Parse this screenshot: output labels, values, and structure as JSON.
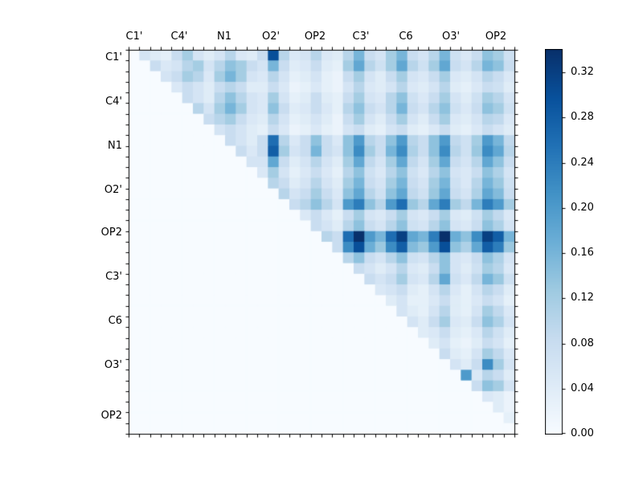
{
  "figure": {
    "background": "#ffffff",
    "axis_color": "#000000"
  },
  "chart_data": {
    "type": "heatmap",
    "title": "",
    "xlabel": "",
    "ylabel": "",
    "n": 36,
    "cells_per_group": 4,
    "col_groups": [
      "C1'",
      "C4'",
      "N1",
      "O2'",
      "OP2",
      "C3'",
      "C6",
      "O3'",
      "OP2"
    ],
    "row_groups": [
      "C1'",
      "C4'",
      "N1",
      "O2'",
      "OP2",
      "C3'",
      "C6",
      "O3'",
      "OP2"
    ],
    "layout_hints": {
      "matrix_form": "upper-triangular",
      "grid": false,
      "colorbar_position": "right"
    },
    "vmin": 0.0,
    "vmax": 0.34,
    "colormap": {
      "name": "Blues",
      "stops": [
        {
          "t": 0.0,
          "color": "#f7fbff"
        },
        {
          "t": 0.125,
          "color": "#deebf7"
        },
        {
          "t": 0.25,
          "color": "#c6dbef"
        },
        {
          "t": 0.375,
          "color": "#9ecae1"
        },
        {
          "t": 0.5,
          "color": "#6baed6"
        },
        {
          "t": 0.625,
          "color": "#4292c6"
        },
        {
          "t": 0.75,
          "color": "#2171b5"
        },
        {
          "t": 0.875,
          "color": "#08519c"
        },
        {
          "t": 1.0,
          "color": "#08306b"
        }
      ]
    },
    "colorbar": {
      "tick_values": [
        0.32,
        0.28,
        0.24,
        0.2,
        0.16,
        0.12,
        0.08,
        0.04,
        0.0
      ],
      "tick_labels": [
        "0.32",
        "0.28",
        "0.24",
        "0.20",
        "0.16",
        "0.12",
        "0.08",
        "0.04",
        "0.00"
      ]
    },
    "matrix": [
      [
        0,
        0.06,
        0.04,
        0.03,
        0.08,
        0.12,
        0.06,
        0.04,
        0.06,
        0.1,
        0.05,
        0.04,
        0.08,
        0.3,
        0.1,
        0.05,
        0.06,
        0.1,
        0.05,
        0.04,
        0.1,
        0.16,
        0.08,
        0.06,
        0.12,
        0.16,
        0.08,
        0.06,
        0.1,
        0.16,
        0.07,
        0.05,
        0.08,
        0.14,
        0.12,
        0.07
      ],
      [
        0,
        0,
        0.08,
        0.05,
        0.06,
        0.1,
        0.12,
        0.06,
        0.1,
        0.14,
        0.12,
        0.08,
        0.06,
        0.16,
        0.08,
        0.04,
        0.05,
        0.08,
        0.04,
        0.03,
        0.12,
        0.18,
        0.1,
        0.07,
        0.12,
        0.18,
        0.1,
        0.07,
        0.12,
        0.18,
        0.08,
        0.06,
        0.1,
        0.16,
        0.14,
        0.08
      ],
      [
        0,
        0,
        0,
        0.06,
        0.08,
        0.12,
        0.1,
        0.05,
        0.12,
        0.16,
        0.12,
        0.06,
        0.05,
        0.1,
        0.06,
        0.03,
        0.04,
        0.06,
        0.03,
        0.02,
        0.08,
        0.12,
        0.06,
        0.04,
        0.08,
        0.12,
        0.06,
        0.05,
        0.08,
        0.12,
        0.05,
        0.04,
        0.06,
        0.1,
        0.08,
        0.05
      ],
      [
        0,
        0,
        0,
        0,
        0.05,
        0.08,
        0.06,
        0.04,
        0.08,
        0.1,
        0.08,
        0.04,
        0.04,
        0.08,
        0.05,
        0.02,
        0.03,
        0.05,
        0.03,
        0.02,
        0.06,
        0.1,
        0.05,
        0.04,
        0.06,
        0.1,
        0.05,
        0.04,
        0.06,
        0.1,
        0.04,
        0.03,
        0.05,
        0.08,
        0.07,
        0.04
      ],
      [
        0,
        0,
        0,
        0,
        0,
        0.08,
        0.06,
        0.04,
        0.1,
        0.14,
        0.1,
        0.06,
        0.05,
        0.12,
        0.06,
        0.03,
        0.04,
        0.08,
        0.04,
        0.03,
        0.08,
        0.12,
        0.06,
        0.05,
        0.1,
        0.14,
        0.07,
        0.05,
        0.08,
        0.12,
        0.06,
        0.04,
        0.07,
        0.12,
        0.1,
        0.06
      ],
      [
        0,
        0,
        0,
        0,
        0,
        0,
        0.1,
        0.06,
        0.12,
        0.16,
        0.12,
        0.06,
        0.05,
        0.14,
        0.08,
        0.04,
        0.05,
        0.08,
        0.05,
        0.03,
        0.1,
        0.14,
        0.08,
        0.06,
        0.1,
        0.16,
        0.08,
        0.06,
        0.1,
        0.14,
        0.07,
        0.05,
        0.08,
        0.14,
        0.12,
        0.07
      ],
      [
        0,
        0,
        0,
        0,
        0,
        0,
        0,
        0.08,
        0.1,
        0.12,
        0.08,
        0.05,
        0.04,
        0.1,
        0.06,
        0.03,
        0.04,
        0.06,
        0.04,
        0.02,
        0.08,
        0.12,
        0.06,
        0.04,
        0.08,
        0.12,
        0.06,
        0.04,
        0.08,
        0.12,
        0.05,
        0.04,
        0.06,
        0.1,
        0.09,
        0.05
      ],
      [
        0,
        0,
        0,
        0,
        0,
        0,
        0,
        0,
        0.06,
        0.08,
        0.06,
        0.04,
        0.03,
        0.08,
        0.05,
        0.02,
        0.03,
        0.05,
        0.03,
        0.02,
        0.06,
        0.08,
        0.04,
        0.03,
        0.06,
        0.08,
        0.04,
        0.03,
        0.05,
        0.08,
        0.04,
        0.03,
        0.05,
        0.08,
        0.06,
        0.04
      ],
      [
        0,
        0,
        0,
        0,
        0,
        0,
        0,
        0,
        0,
        0.08,
        0.06,
        0.04,
        0.08,
        0.26,
        0.1,
        0.05,
        0.08,
        0.14,
        0.08,
        0.05,
        0.14,
        0.2,
        0.1,
        0.08,
        0.14,
        0.2,
        0.1,
        0.08,
        0.14,
        0.2,
        0.09,
        0.07,
        0.12,
        0.2,
        0.16,
        0.09
      ],
      [
        0,
        0,
        0,
        0,
        0,
        0,
        0,
        0,
        0,
        0,
        0.08,
        0.05,
        0.08,
        0.28,
        0.12,
        0.06,
        0.08,
        0.16,
        0.08,
        0.06,
        0.14,
        0.22,
        0.12,
        0.08,
        0.16,
        0.22,
        0.11,
        0.08,
        0.14,
        0.22,
        0.1,
        0.07,
        0.13,
        0.22,
        0.18,
        0.1
      ],
      [
        0,
        0,
        0,
        0,
        0,
        0,
        0,
        0,
        0,
        0,
        0,
        0.06,
        0.06,
        0.18,
        0.08,
        0.04,
        0.06,
        0.1,
        0.06,
        0.04,
        0.12,
        0.18,
        0.09,
        0.06,
        0.12,
        0.18,
        0.09,
        0.06,
        0.12,
        0.18,
        0.08,
        0.06,
        0.1,
        0.18,
        0.14,
        0.08
      ],
      [
        0,
        0,
        0,
        0,
        0,
        0,
        0,
        0,
        0,
        0,
        0,
        0,
        0.05,
        0.12,
        0.06,
        0.03,
        0.05,
        0.08,
        0.05,
        0.03,
        0.1,
        0.14,
        0.07,
        0.05,
        0.1,
        0.14,
        0.07,
        0.05,
        0.1,
        0.14,
        0.06,
        0.05,
        0.08,
        0.14,
        0.11,
        0.06
      ],
      [
        0,
        0,
        0,
        0,
        0,
        0,
        0,
        0,
        0,
        0,
        0,
        0,
        0,
        0.1,
        0.08,
        0.04,
        0.06,
        0.1,
        0.06,
        0.04,
        0.12,
        0.16,
        0.08,
        0.06,
        0.12,
        0.16,
        0.08,
        0.06,
        0.12,
        0.16,
        0.07,
        0.05,
        0.1,
        0.16,
        0.13,
        0.07
      ],
      [
        0,
        0,
        0,
        0,
        0,
        0,
        0,
        0,
        0,
        0,
        0,
        0,
        0,
        0,
        0.1,
        0.06,
        0.08,
        0.12,
        0.08,
        0.05,
        0.14,
        0.18,
        0.1,
        0.07,
        0.14,
        0.18,
        0.09,
        0.07,
        0.13,
        0.18,
        0.08,
        0.06,
        0.11,
        0.18,
        0.15,
        0.08
      ],
      [
        0,
        0,
        0,
        0,
        0,
        0,
        0,
        0,
        0,
        0,
        0,
        0,
        0,
        0,
        0,
        0.08,
        0.1,
        0.14,
        0.1,
        0.06,
        0.2,
        0.24,
        0.14,
        0.1,
        0.2,
        0.26,
        0.13,
        0.1,
        0.18,
        0.24,
        0.12,
        0.09,
        0.16,
        0.24,
        0.2,
        0.12
      ],
      [
        0,
        0,
        0,
        0,
        0,
        0,
        0,
        0,
        0,
        0,
        0,
        0,
        0,
        0,
        0,
        0,
        0.05,
        0.08,
        0.05,
        0.03,
        0.08,
        0.12,
        0.06,
        0.05,
        0.08,
        0.12,
        0.06,
        0.05,
        0.08,
        0.12,
        0.05,
        0.04,
        0.07,
        0.12,
        0.09,
        0.05
      ],
      [
        0,
        0,
        0,
        0,
        0,
        0,
        0,
        0,
        0,
        0,
        0,
        0,
        0,
        0,
        0,
        0,
        0,
        0.08,
        0.06,
        0.04,
        0.1,
        0.14,
        0.08,
        0.06,
        0.1,
        0.14,
        0.07,
        0.06,
        0.1,
        0.14,
        0.06,
        0.05,
        0.08,
        0.14,
        0.11,
        0.06
      ],
      [
        0,
        0,
        0,
        0,
        0,
        0,
        0,
        0,
        0,
        0,
        0,
        0,
        0,
        0,
        0,
        0,
        0,
        0,
        0.1,
        0.08,
        0.26,
        0.34,
        0.2,
        0.16,
        0.26,
        0.32,
        0.18,
        0.16,
        0.24,
        0.34,
        0.17,
        0.14,
        0.22,
        0.32,
        0.28,
        0.16
      ],
      [
        0,
        0,
        0,
        0,
        0,
        0,
        0,
        0,
        0,
        0,
        0,
        0,
        0,
        0,
        0,
        0,
        0,
        0,
        0,
        0.08,
        0.22,
        0.3,
        0.17,
        0.13,
        0.22,
        0.28,
        0.15,
        0.13,
        0.2,
        0.3,
        0.14,
        0.11,
        0.18,
        0.28,
        0.24,
        0.13
      ],
      [
        0,
        0,
        0,
        0,
        0,
        0,
        0,
        0,
        0,
        0,
        0,
        0,
        0,
        0,
        0,
        0,
        0,
        0,
        0,
        0,
        0.1,
        0.14,
        0.08,
        0.06,
        0.1,
        0.14,
        0.07,
        0.06,
        0.1,
        0.14,
        0.06,
        0.05,
        0.08,
        0.14,
        0.11,
        0.06
      ],
      [
        0,
        0,
        0,
        0,
        0,
        0,
        0,
        0,
        0,
        0,
        0,
        0,
        0,
        0,
        0,
        0,
        0,
        0,
        0,
        0,
        0,
        0.08,
        0.06,
        0.04,
        0.06,
        0.1,
        0.05,
        0.04,
        0.08,
        0.14,
        0.06,
        0.04,
        0.07,
        0.12,
        0.1,
        0.05
      ],
      [
        0,
        0,
        0,
        0,
        0,
        0,
        0,
        0,
        0,
        0,
        0,
        0,
        0,
        0,
        0,
        0,
        0,
        0,
        0,
        0,
        0,
        0,
        0.08,
        0.06,
        0.08,
        0.12,
        0.06,
        0.05,
        0.1,
        0.18,
        0.07,
        0.05,
        0.09,
        0.16,
        0.13,
        0.07
      ],
      [
        0,
        0,
        0,
        0,
        0,
        0,
        0,
        0,
        0,
        0,
        0,
        0,
        0,
        0,
        0,
        0,
        0,
        0,
        0,
        0,
        0,
        0,
        0,
        0.05,
        0.06,
        0.08,
        0.04,
        0.03,
        0.06,
        0.1,
        0.05,
        0.03,
        0.06,
        0.1,
        0.08,
        0.04
      ],
      [
        0,
        0,
        0,
        0,
        0,
        0,
        0,
        0,
        0,
        0,
        0,
        0,
        0,
        0,
        0,
        0,
        0,
        0,
        0,
        0,
        0,
        0,
        0,
        0,
        0.04,
        0.06,
        0.03,
        0.03,
        0.05,
        0.08,
        0.04,
        0.03,
        0.05,
        0.08,
        0.06,
        0.03
      ],
      [
        0,
        0,
        0,
        0,
        0,
        0,
        0,
        0,
        0,
        0,
        0,
        0,
        0,
        0,
        0,
        0,
        0,
        0,
        0,
        0,
        0,
        0,
        0,
        0,
        0,
        0.06,
        0.04,
        0.03,
        0.06,
        0.1,
        0.04,
        0.03,
        0.06,
        0.12,
        0.09,
        0.05
      ],
      [
        0,
        0,
        0,
        0,
        0,
        0,
        0,
        0,
        0,
        0,
        0,
        0,
        0,
        0,
        0,
        0,
        0,
        0,
        0,
        0,
        0,
        0,
        0,
        0,
        0,
        0,
        0.06,
        0.04,
        0.08,
        0.12,
        0.05,
        0.04,
        0.08,
        0.14,
        0.11,
        0.06
      ],
      [
        0,
        0,
        0,
        0,
        0,
        0,
        0,
        0,
        0,
        0,
        0,
        0,
        0,
        0,
        0,
        0,
        0,
        0,
        0,
        0,
        0,
        0,
        0,
        0,
        0,
        0,
        0,
        0.04,
        0.05,
        0.08,
        0.04,
        0.03,
        0.05,
        0.1,
        0.07,
        0.04
      ],
      [
        0,
        0,
        0,
        0,
        0,
        0,
        0,
        0,
        0,
        0,
        0,
        0,
        0,
        0,
        0,
        0,
        0,
        0,
        0,
        0,
        0,
        0,
        0,
        0,
        0,
        0,
        0,
        0,
        0.04,
        0.06,
        0.03,
        0.02,
        0.04,
        0.08,
        0.06,
        0.03
      ],
      [
        0,
        0,
        0,
        0,
        0,
        0,
        0,
        0,
        0,
        0,
        0,
        0,
        0,
        0,
        0,
        0,
        0,
        0,
        0,
        0,
        0,
        0,
        0,
        0,
        0,
        0,
        0,
        0,
        0,
        0.08,
        0.04,
        0.03,
        0.06,
        0.12,
        0.09,
        0.05
      ],
      [
        0,
        0,
        0,
        0,
        0,
        0,
        0,
        0,
        0,
        0,
        0,
        0,
        0,
        0,
        0,
        0,
        0,
        0,
        0,
        0,
        0,
        0,
        0,
        0,
        0,
        0,
        0,
        0,
        0,
        0,
        0.06,
        0.04,
        0.08,
        0.22,
        0.12,
        0.06
      ],
      [
        0,
        0,
        0,
        0,
        0,
        0,
        0,
        0,
        0,
        0,
        0,
        0,
        0,
        0,
        0,
        0,
        0,
        0,
        0,
        0,
        0,
        0,
        0,
        0,
        0,
        0,
        0,
        0,
        0,
        0,
        0,
        0.2,
        0.05,
        0.1,
        0.08,
        0.04
      ],
      [
        0,
        0,
        0,
        0,
        0,
        0,
        0,
        0,
        0,
        0,
        0,
        0,
        0,
        0,
        0,
        0,
        0,
        0,
        0,
        0,
        0,
        0,
        0,
        0,
        0,
        0,
        0,
        0,
        0,
        0,
        0,
        0,
        0.08,
        0.14,
        0.12,
        0.06
      ],
      [
        0,
        0,
        0,
        0,
        0,
        0,
        0,
        0,
        0,
        0,
        0,
        0,
        0,
        0,
        0,
        0,
        0,
        0,
        0,
        0,
        0,
        0,
        0,
        0,
        0,
        0,
        0,
        0,
        0,
        0,
        0,
        0,
        0,
        0.05,
        0.04,
        0.02
      ],
      [
        0,
        0,
        0,
        0,
        0,
        0,
        0,
        0,
        0,
        0,
        0,
        0,
        0,
        0,
        0,
        0,
        0,
        0,
        0,
        0,
        0,
        0,
        0,
        0,
        0,
        0,
        0,
        0,
        0,
        0,
        0,
        0,
        0,
        0,
        0.04,
        0.02
      ],
      [
        0,
        0,
        0,
        0,
        0,
        0,
        0,
        0,
        0,
        0,
        0,
        0,
        0,
        0,
        0,
        0,
        0,
        0,
        0,
        0,
        0,
        0,
        0,
        0,
        0,
        0,
        0,
        0,
        0,
        0,
        0,
        0,
        0,
        0,
        0,
        0.03
      ],
      [
        0,
        0,
        0,
        0,
        0,
        0,
        0,
        0,
        0,
        0,
        0,
        0,
        0,
        0,
        0,
        0,
        0,
        0,
        0,
        0,
        0,
        0,
        0,
        0,
        0,
        0,
        0,
        0,
        0,
        0,
        0,
        0,
        0,
        0,
        0,
        0
      ]
    ]
  }
}
